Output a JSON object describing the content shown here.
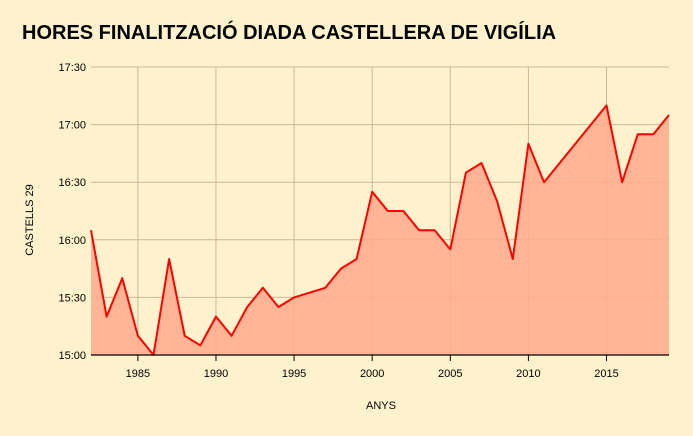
{
  "chart_data": {
    "type": "area",
    "title": "HORES FINALITZACIÓ DIADA CASTELLERA DE VIGÍLIA",
    "xlabel": "ANYS",
    "ylabel": "CASTELLS 29",
    "xlim": [
      1982,
      2019
    ],
    "ylim": [
      "15:00",
      "17:30"
    ],
    "x_ticks": [
      1985,
      1990,
      1995,
      2000,
      2005,
      2010,
      2015
    ],
    "y_ticks": [
      "15:00",
      "15:30",
      "16:00",
      "16:30",
      "17:00",
      "17:30"
    ],
    "grid": true,
    "line_color": "#ff0000",
    "fill_color": "#ffaa8c",
    "x": [
      1982,
      1983,
      1984,
      1985,
      1986,
      1987,
      1988,
      1989,
      1990,
      1991,
      1992,
      1993,
      1994,
      1995,
      1997,
      1998,
      1999,
      2000,
      2001,
      2002,
      2003,
      2004,
      2005,
      2006,
      2007,
      2008,
      2009,
      2010,
      2011,
      2015,
      2016,
      2017,
      2018,
      2019
    ],
    "y": [
      "16:05",
      "15:20",
      "15:40",
      "15:10",
      "15:00",
      "15:50",
      "15:10",
      "15:05",
      "15:20",
      "15:10",
      "15:25",
      "15:35",
      "15:25",
      "15:30",
      "15:35",
      "15:45",
      "15:50",
      "16:25",
      "16:15",
      "16:15",
      "16:05",
      "16:05",
      "15:55",
      "16:35",
      "16:40",
      "16:20",
      "15:50",
      "16:50",
      "16:30",
      "17:10",
      "16:30",
      "16:55",
      "16:55",
      "17:05"
    ]
  }
}
